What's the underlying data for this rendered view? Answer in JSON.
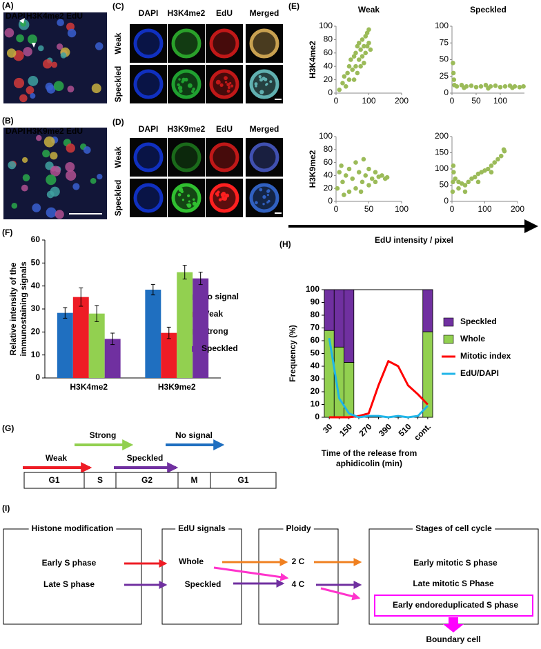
{
  "panels": {
    "A": {
      "label": "(A)",
      "stains": [
        "DAPI",
        "H3K4me2",
        "EdU"
      ]
    },
    "B": {
      "label": "(B)",
      "stains": [
        "DAPI",
        "H3K9me2",
        "EdU"
      ]
    },
    "C": {
      "label": "(C)",
      "columns": [
        "DAPI",
        "H3K4me2",
        "EdU",
        "Merged"
      ],
      "rows": [
        "Weak",
        "Speckled"
      ]
    },
    "D": {
      "label": "(D)",
      "columns": [
        "DAPI",
        "H3K9me2",
        "EdU",
        "Merged"
      ],
      "rows": [
        "Weak",
        "Speckled"
      ]
    },
    "E": {
      "label": "(E)",
      "x_label": "EdU intensity / pixel"
    },
    "F": {
      "label": "(F)"
    },
    "G": {
      "label": "(G)"
    },
    "H": {
      "label": "(H)"
    },
    "I": {
      "label": "(I)"
    }
  },
  "chart_data": [
    {
      "type": "scatter",
      "title": "Weak",
      "y_label": "H3K4me2",
      "color": "#9bbb59",
      "xlim": [
        0,
        200
      ],
      "xticks": [
        0,
        100,
        200
      ],
      "ylim": [
        0,
        100
      ],
      "yticks": [
        0,
        20,
        40,
        60,
        80,
        100
      ],
      "x": [
        10,
        20,
        25,
        30,
        35,
        40,
        40,
        45,
        50,
        55,
        55,
        60,
        60,
        65,
        65,
        70,
        70,
        75,
        75,
        80,
        80,
        85,
        85,
        90,
        90,
        95,
        95,
        100,
        100,
        105
      ],
      "values": [
        5,
        15,
        25,
        10,
        30,
        40,
        20,
        50,
        35,
        55,
        20,
        60,
        40,
        70,
        30,
        50,
        75,
        65,
        40,
        80,
        55,
        70,
        45,
        85,
        60,
        90,
        70,
        75,
        95,
        65
      ]
    },
    {
      "type": "scatter",
      "title": "Speckled",
      "color": "#9bbb59",
      "xlim": [
        0,
        150
      ],
      "xticks": [
        0,
        50,
        100
      ],
      "ylim": [
        0,
        100
      ],
      "yticks": [
        0,
        25,
        50,
        75,
        100
      ],
      "x": [
        2,
        3,
        4,
        5,
        10,
        20,
        30,
        40,
        50,
        60,
        70,
        80,
        90,
        100,
        110,
        120,
        130,
        140,
        148,
        25,
        75,
        125
      ],
      "values": [
        45,
        30,
        20,
        12,
        10,
        12,
        10,
        11,
        9,
        10,
        12,
        10,
        11,
        9,
        10,
        11,
        10,
        9,
        10,
        8,
        7,
        8
      ]
    },
    {
      "type": "scatter",
      "y_label": "H3K9me2",
      "color": "#9bbb59",
      "xlim": [
        0,
        100
      ],
      "xticks": [
        0,
        50,
        100
      ],
      "ylim": [
        0,
        100
      ],
      "yticks": [
        0,
        20,
        40,
        60,
        80,
        100
      ],
      "x": [
        2,
        5,
        8,
        10,
        15,
        20,
        20,
        25,
        30,
        30,
        35,
        40,
        42,
        45,
        50,
        50,
        55,
        60,
        60,
        65,
        70,
        75,
        78,
        12,
        38
      ],
      "values": [
        20,
        45,
        55,
        30,
        40,
        15,
        50,
        35,
        60,
        20,
        45,
        30,
        65,
        40,
        25,
        50,
        35,
        45,
        30,
        38,
        40,
        35,
        37,
        10,
        15
      ]
    },
    {
      "type": "scatter",
      "color": "#9bbb59",
      "xlim": [
        0,
        200
      ],
      "xticks": [
        0,
        100,
        200
      ],
      "ylim": [
        0,
        200
      ],
      "yticks": [
        0,
        50,
        100,
        150,
        200
      ],
      "x": [
        2,
        3,
        4,
        5,
        10,
        20,
        20,
        30,
        40,
        50,
        60,
        70,
        80,
        90,
        100,
        110,
        120,
        130,
        140,
        150,
        158,
        160,
        40,
        80,
        120
      ],
      "values": [
        30,
        60,
        110,
        90,
        70,
        40,
        60,
        55,
        50,
        60,
        70,
        75,
        85,
        90,
        95,
        100,
        110,
        120,
        130,
        140,
        160,
        155,
        30,
        60,
        90
      ]
    },
    {
      "type": "bar",
      "y_label": [
        "Relative intensity of the",
        "immunostaining signals"
      ],
      "categories": [
        "H3K4me2",
        "H3K9me2"
      ],
      "ylim": [
        0,
        60
      ],
      "yticks": [
        0,
        10,
        20,
        30,
        40,
        50,
        60
      ],
      "series": [
        {
          "name": "No signal",
          "color": "#1f6fc0",
          "values": [
            28.3,
            38.4
          ],
          "errors": [
            2.3,
            2.3
          ]
        },
        {
          "name": "Weak",
          "color": "#ee1c25",
          "values": [
            35.2,
            19.6
          ],
          "errors": [
            4,
            2.5
          ]
        },
        {
          "name": "Strong",
          "color": "#92d050",
          "values": [
            28,
            46
          ],
          "errors": [
            3.5,
            3
          ]
        },
        {
          "name": "Speckled",
          "color": "#7030a0",
          "values": [
            17,
            43.3
          ],
          "errors": [
            2.5,
            2.7
          ]
        }
      ]
    },
    {
      "type": "combo",
      "y_label": "Frequency  (%)",
      "x_label": [
        "Time of the release from",
        "aphidicolin (min)"
      ],
      "categories": [
        30,
        null,
        150,
        null,
        270,
        null,
        390,
        null,
        510,
        null,
        "cont."
      ],
      "ylim": [
        0,
        100
      ],
      "yticks": [
        0,
        10,
        20,
        30,
        40,
        50,
        60,
        70,
        80,
        90,
        100
      ],
      "series": [
        {
          "name": "Speckled",
          "kind": "bar",
          "color": "#7030a0",
          "values": [
            32,
            45,
            57,
            null,
            null,
            null,
            null,
            null,
            null,
            null,
            33
          ]
        },
        {
          "name": "Whole",
          "kind": "bar",
          "color": "#92d050",
          "values": [
            68,
            55,
            43,
            null,
            null,
            null,
            null,
            null,
            null,
            null,
            67
          ]
        },
        {
          "name": "Mitotic index",
          "kind": "line",
          "color": "#ff0000",
          "values": [
            0,
            0,
            0,
            1,
            3,
            25,
            44,
            40,
            25,
            18,
            10
          ]
        },
        {
          "name": "EdU/DAPI",
          "kind": "line",
          "color": "#1fb5e8",
          "values": [
            62,
            15,
            3,
            0,
            1,
            1,
            0,
            1,
            0,
            1,
            9
          ]
        }
      ]
    }
  ],
  "cell_cycle": {
    "arrows": [
      "Strong",
      "No signal",
      "Weak",
      "Speckled"
    ],
    "phases": [
      "G1",
      "S",
      "G2",
      "M",
      "G1"
    ]
  },
  "flow": {
    "boxes": [
      {
        "title": "Histone modification",
        "items": [
          "Early S phase",
          "Late S phase"
        ]
      },
      {
        "title": "EdU signals",
        "items": [
          "Whole",
          "Speckled"
        ]
      },
      {
        "title": "Ploidy",
        "items": [
          "2 C",
          "4 C"
        ]
      },
      {
        "title": "Stages of cell cycle",
        "items": [
          "Early mitotic S phase",
          "Late mitotic S Phase",
          "Early endoreduplicated S phase"
        ]
      }
    ],
    "result": "Boundary cell"
  }
}
